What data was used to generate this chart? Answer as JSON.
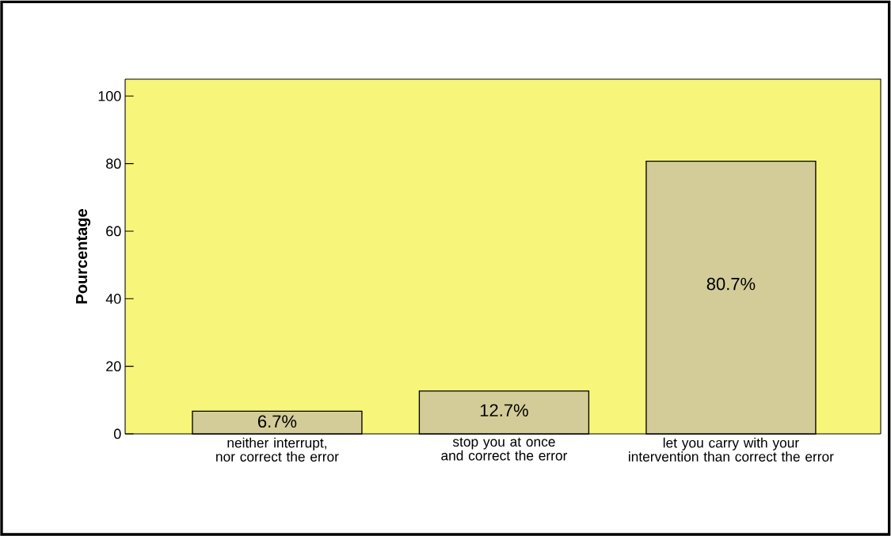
{
  "chart_data": {
    "type": "bar",
    "ylabel": "Pourcentage",
    "categories": [
      "neither interrupt, nor correct the error",
      "stop you at once and correct the error",
      "let you carry with your intervention than correct the error"
    ],
    "values": [
      6.7,
      12.7,
      80.7
    ],
    "value_labels": [
      "6.7%",
      "12.7%",
      "80.7%"
    ],
    "color": "#d4cc98",
    "ylim": [
      0,
      105
    ],
    "yticks": [
      0,
      20,
      40,
      60,
      80,
      100
    ],
    "grid": false
  }
}
